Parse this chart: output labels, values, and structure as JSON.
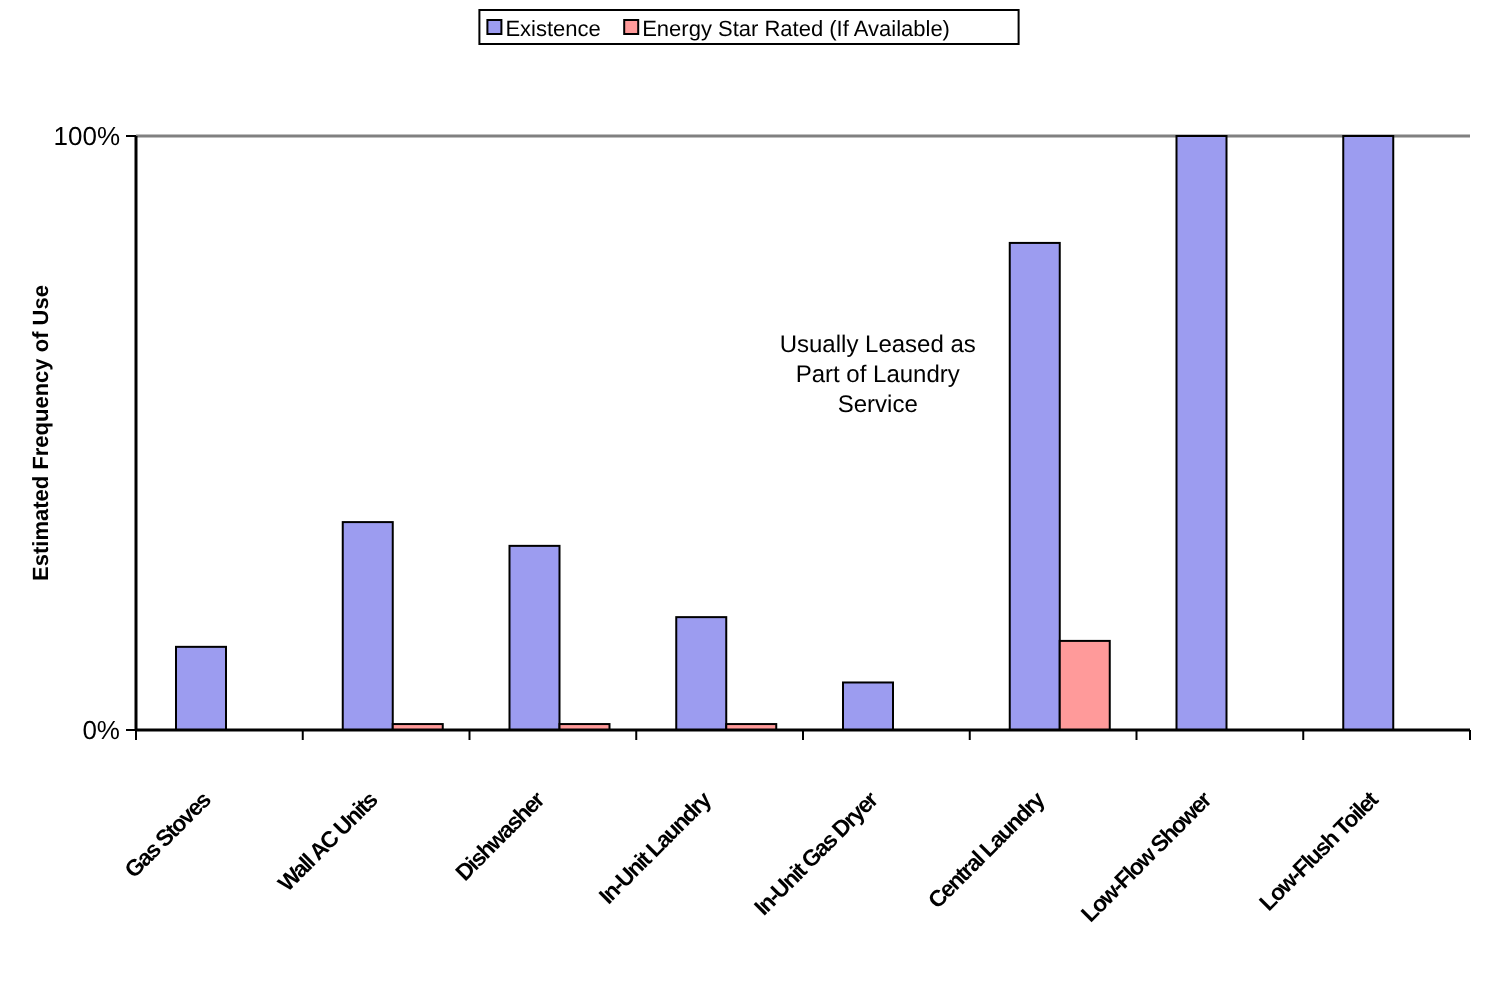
{
  "chart_data": {
    "type": "bar",
    "ylabel": "Estimated Frequency of Use",
    "categories": [
      "Gas Stoves",
      "Wall AC Units",
      "Dishwasher",
      "In-Unit Laundry",
      "In-Unit Gas Dryer",
      "Central Laundry",
      "Low-Flow Shower",
      "Low-Flush Toilet"
    ],
    "series": [
      {
        "name": "Existence",
        "color": "#9c9cf0",
        "values": [
          0.14,
          0.35,
          0.31,
          0.19,
          0.08,
          0.82,
          1,
          1
        ]
      },
      {
        "name": "Energy Star Rated (If Available)",
        "color": "#ff9a9a",
        "values": [
          null,
          0.01,
          0.01,
          0.01,
          null,
          0.15,
          null,
          null
        ]
      }
    ],
    "ylim": [
      0,
      1
    ],
    "yticks": [
      {
        "value": 0,
        "label": "0%"
      },
      {
        "value": 1,
        "label": "100%"
      }
    ],
    "legend": "top",
    "annotations": [
      "Usually Leased as\nPart of Laundry\nService"
    ]
  }
}
